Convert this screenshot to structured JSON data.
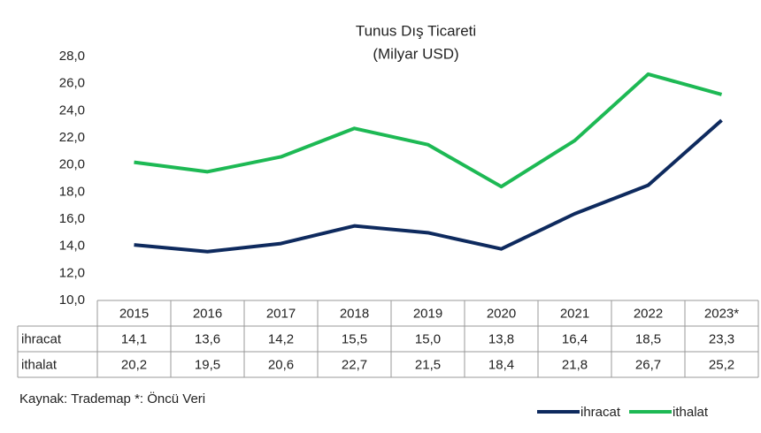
{
  "chart_data": {
    "type": "line",
    "title": "Tunus Dış Ticareti",
    "subtitle": "(Milyar USD)",
    "categories": [
      "2015",
      "2016",
      "2017",
      "2018",
      "2019",
      "2020",
      "2021",
      "2022",
      "2023*"
    ],
    "series": [
      {
        "name": "ihracat",
        "color": "#0e2a5e",
        "values": [
          14.1,
          13.6,
          14.2,
          15.5,
          15.0,
          13.8,
          16.4,
          18.5,
          23.3
        ],
        "value_labels": [
          "14,1",
          "13,6",
          "14,2",
          "15,5",
          "15,0",
          "13,8",
          "16,4",
          "18,5",
          "23,3"
        ]
      },
      {
        "name": "ithalat",
        "color": "#1db954",
        "values": [
          20.2,
          19.5,
          20.6,
          22.7,
          21.5,
          18.4,
          21.8,
          26.7,
          25.2
        ],
        "value_labels": [
          "20,2",
          "19,5",
          "20,6",
          "22,7",
          "21,5",
          "18,4",
          "21,8",
          "26,7",
          "25,2"
        ]
      }
    ],
    "ylim": [
      10,
      28
    ],
    "yticks": [
      {
        "value": 10,
        "label": "10,0"
      },
      {
        "value": 12,
        "label": "12,0"
      },
      {
        "value": 14,
        "label": "14,0"
      },
      {
        "value": 16,
        "label": "16,0"
      },
      {
        "value": 18,
        "label": "18,0"
      },
      {
        "value": 20,
        "label": "20,0"
      },
      {
        "value": 22,
        "label": "22,0"
      },
      {
        "value": 24,
        "label": "24,0"
      },
      {
        "value": 26,
        "label": "26,0"
      },
      {
        "value": 28,
        "label": "28,0"
      }
    ],
    "grid": false,
    "legend": "bottom-right",
    "source": "Kaynak: Trademap *: Öncü Veri"
  }
}
